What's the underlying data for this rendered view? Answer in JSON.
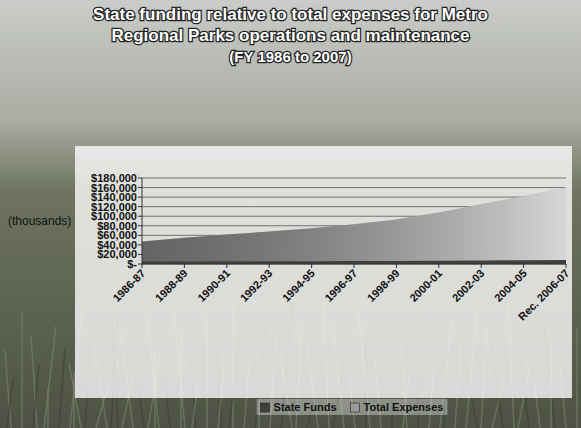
{
  "chart_data": {
    "type": "area",
    "title": "State funding relative to total expenses for Metro Regional Parks operations and maintenance",
    "subtitle": "(FY 1986 to 2007)",
    "y_label": "(thousands)",
    "categories": [
      "1986-87",
      "1988-89",
      "1990-91",
      "1992-93",
      "1994-95",
      "1996-97",
      "1998-99",
      "2000-01",
      "2002-03",
      "2004-05",
      "Rec. 2006-07"
    ],
    "series": [
      {
        "name": "State Funds",
        "color": "#404040",
        "values": [
          5000,
          5200,
          5500,
          5800,
          6000,
          6200,
          6500,
          7000,
          7500,
          8000,
          8500
        ]
      },
      {
        "name": "Total Expenses",
        "color": "#9a9a9a",
        "values": [
          47000,
          55000,
          62000,
          68000,
          75000,
          83000,
          93000,
          108000,
          125000,
          142000,
          160000
        ]
      }
    ],
    "ylim": [
      0,
      180000
    ],
    "yticks": [
      {
        "value": 0,
        "label": "$-"
      },
      {
        "value": 20000,
        "label": "$20,000"
      },
      {
        "value": 40000,
        "label": "$40,000"
      },
      {
        "value": 60000,
        "label": "$60,000"
      },
      {
        "value": 80000,
        "label": "$80,000"
      },
      {
        "value": 100000,
        "label": "$100,000"
      },
      {
        "value": 120000,
        "label": "$120,000"
      },
      {
        "value": 140000,
        "label": "$140,000"
      },
      {
        "value": 160000,
        "label": "$160,000"
      },
      {
        "value": 180000,
        "label": "$180,000"
      }
    ],
    "grid": true,
    "legend": "bottom"
  }
}
